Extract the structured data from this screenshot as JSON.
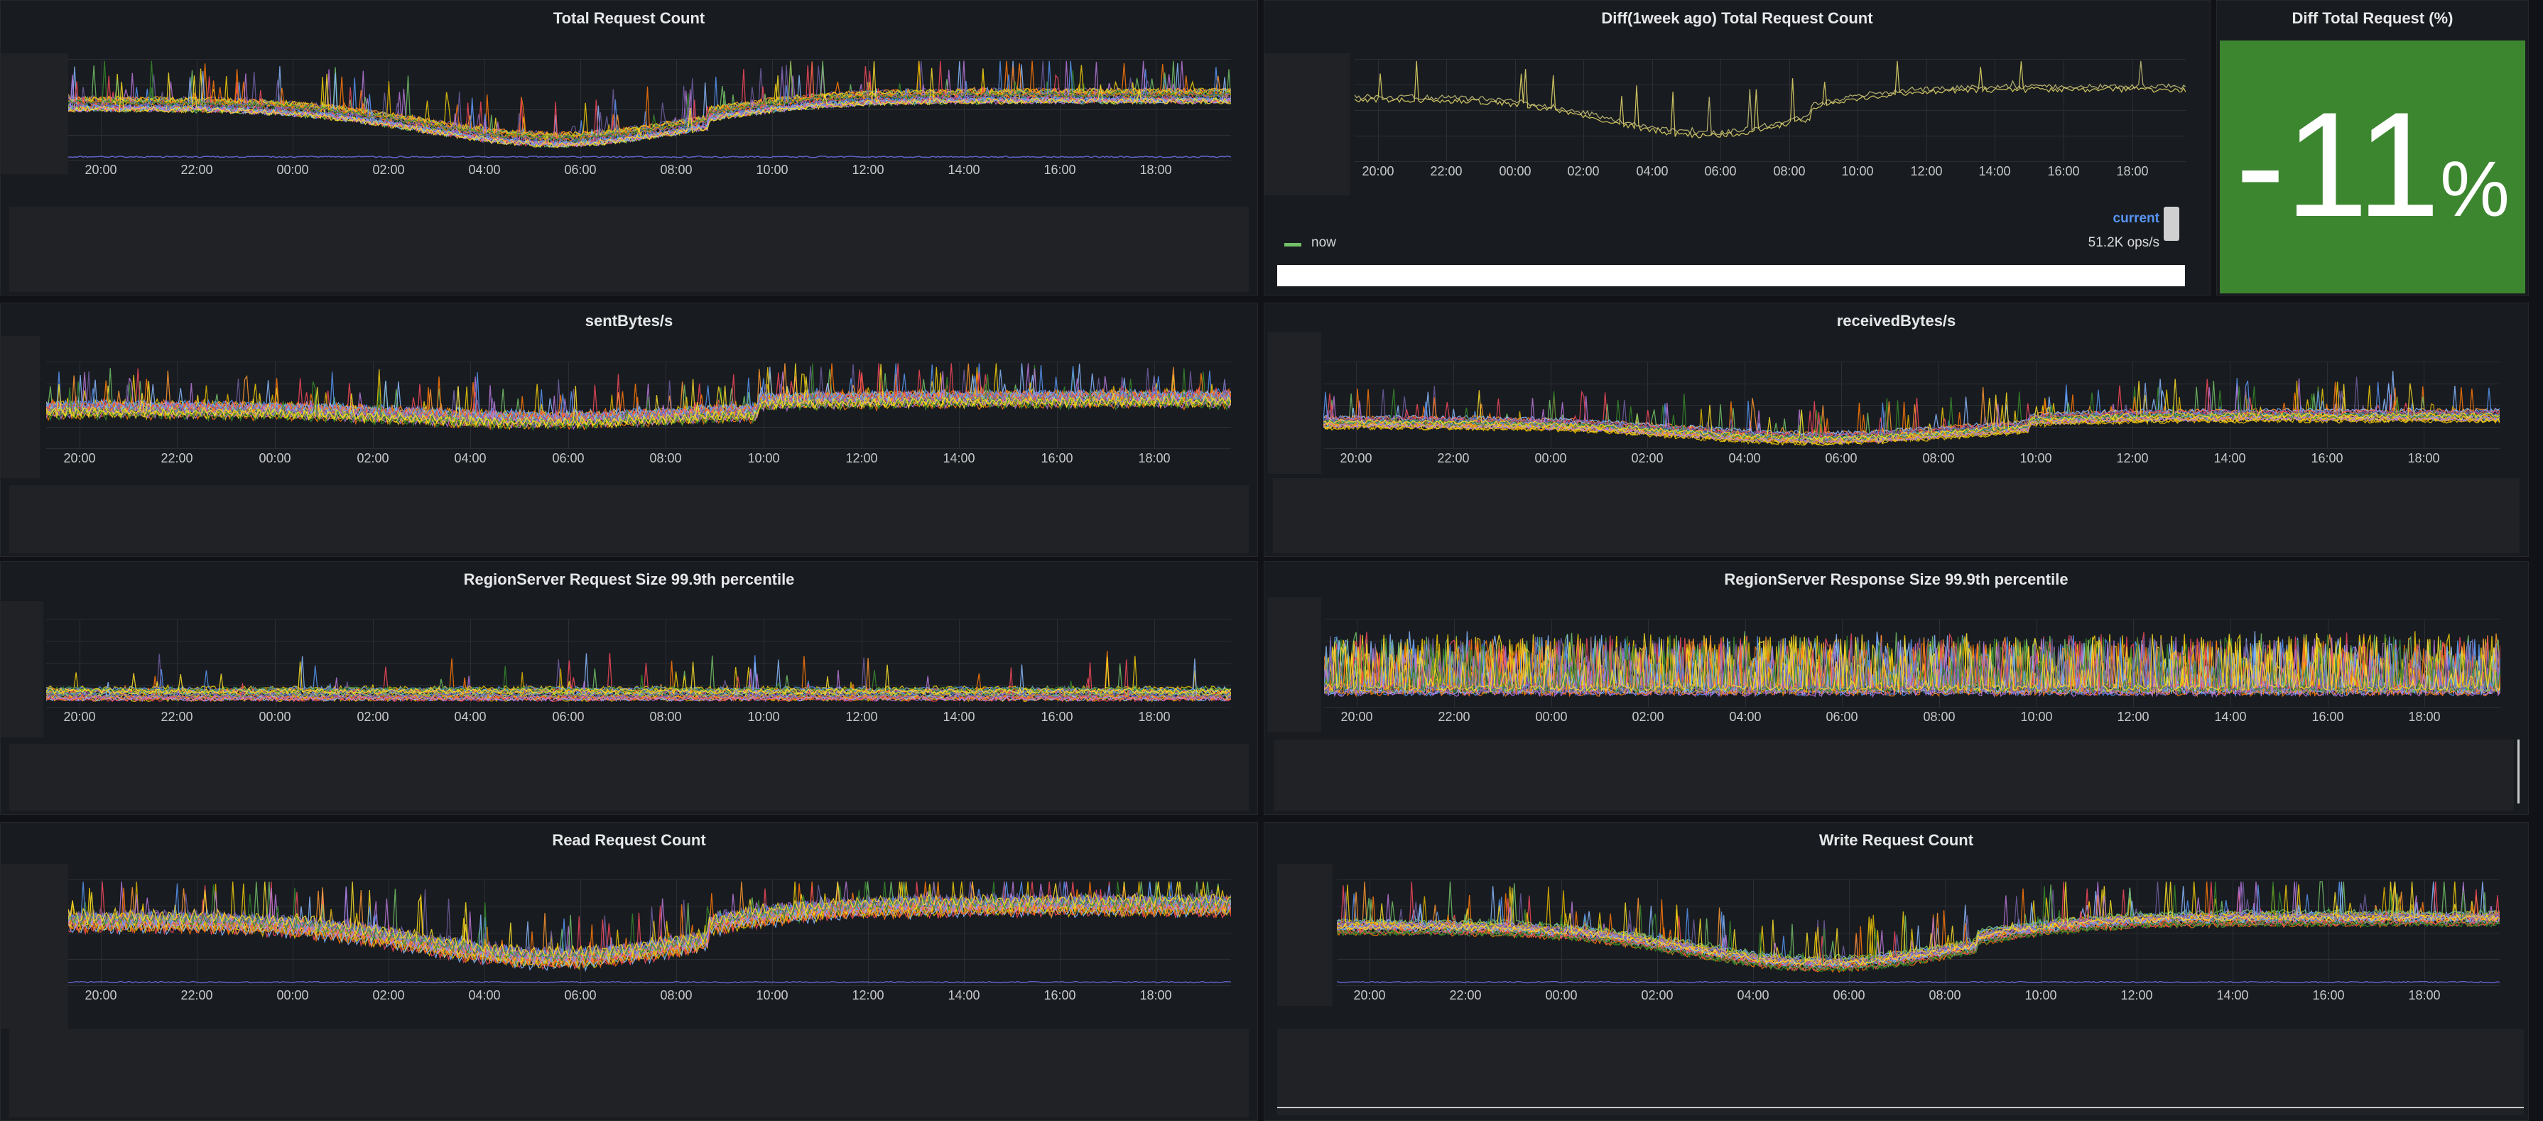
{
  "time_ticks_a": [
    "20:00",
    "22:00",
    "00:00",
    "02:00",
    "04:00",
    "06:00",
    "08:00",
    "10:00",
    "12:00",
    "14:00",
    "16:00",
    "18:00"
  ],
  "panels": {
    "total_request": {
      "title": "Total Request Count"
    },
    "diff_total": {
      "title": "Diff(1week ago) Total Request Count",
      "legend_header": "current",
      "legend_series_name": "now",
      "legend_series_value": "51.2K ops/s",
      "legend_color": "#73bf69"
    },
    "diff_pct": {
      "title": "Diff Total Request (%)",
      "value": "-11",
      "unit": "%"
    },
    "sent_bytes": {
      "title": "sentBytes/s"
    },
    "received_bytes": {
      "title": "receivedBytes/s"
    },
    "req_size": {
      "title": "RegionServer Request Size 99.9th percentile"
    },
    "resp_size": {
      "title": "RegionServer Response Size 99.9th percentile"
    },
    "read_request": {
      "title": "Read Request Count"
    },
    "write_request": {
      "title": "Write Request Count"
    }
  },
  "colors": {
    "background": "#111217",
    "panel": "#181b1f",
    "stat_green": "#3d8630",
    "series": [
      "#73bf69",
      "#f2cc0c",
      "#8ab8ff",
      "#ff780a",
      "#f2495c",
      "#5794f2",
      "#b877d9",
      "#705da0",
      "#37872d",
      "#fade2a",
      "#ff9830",
      "#e0b400"
    ]
  }
}
